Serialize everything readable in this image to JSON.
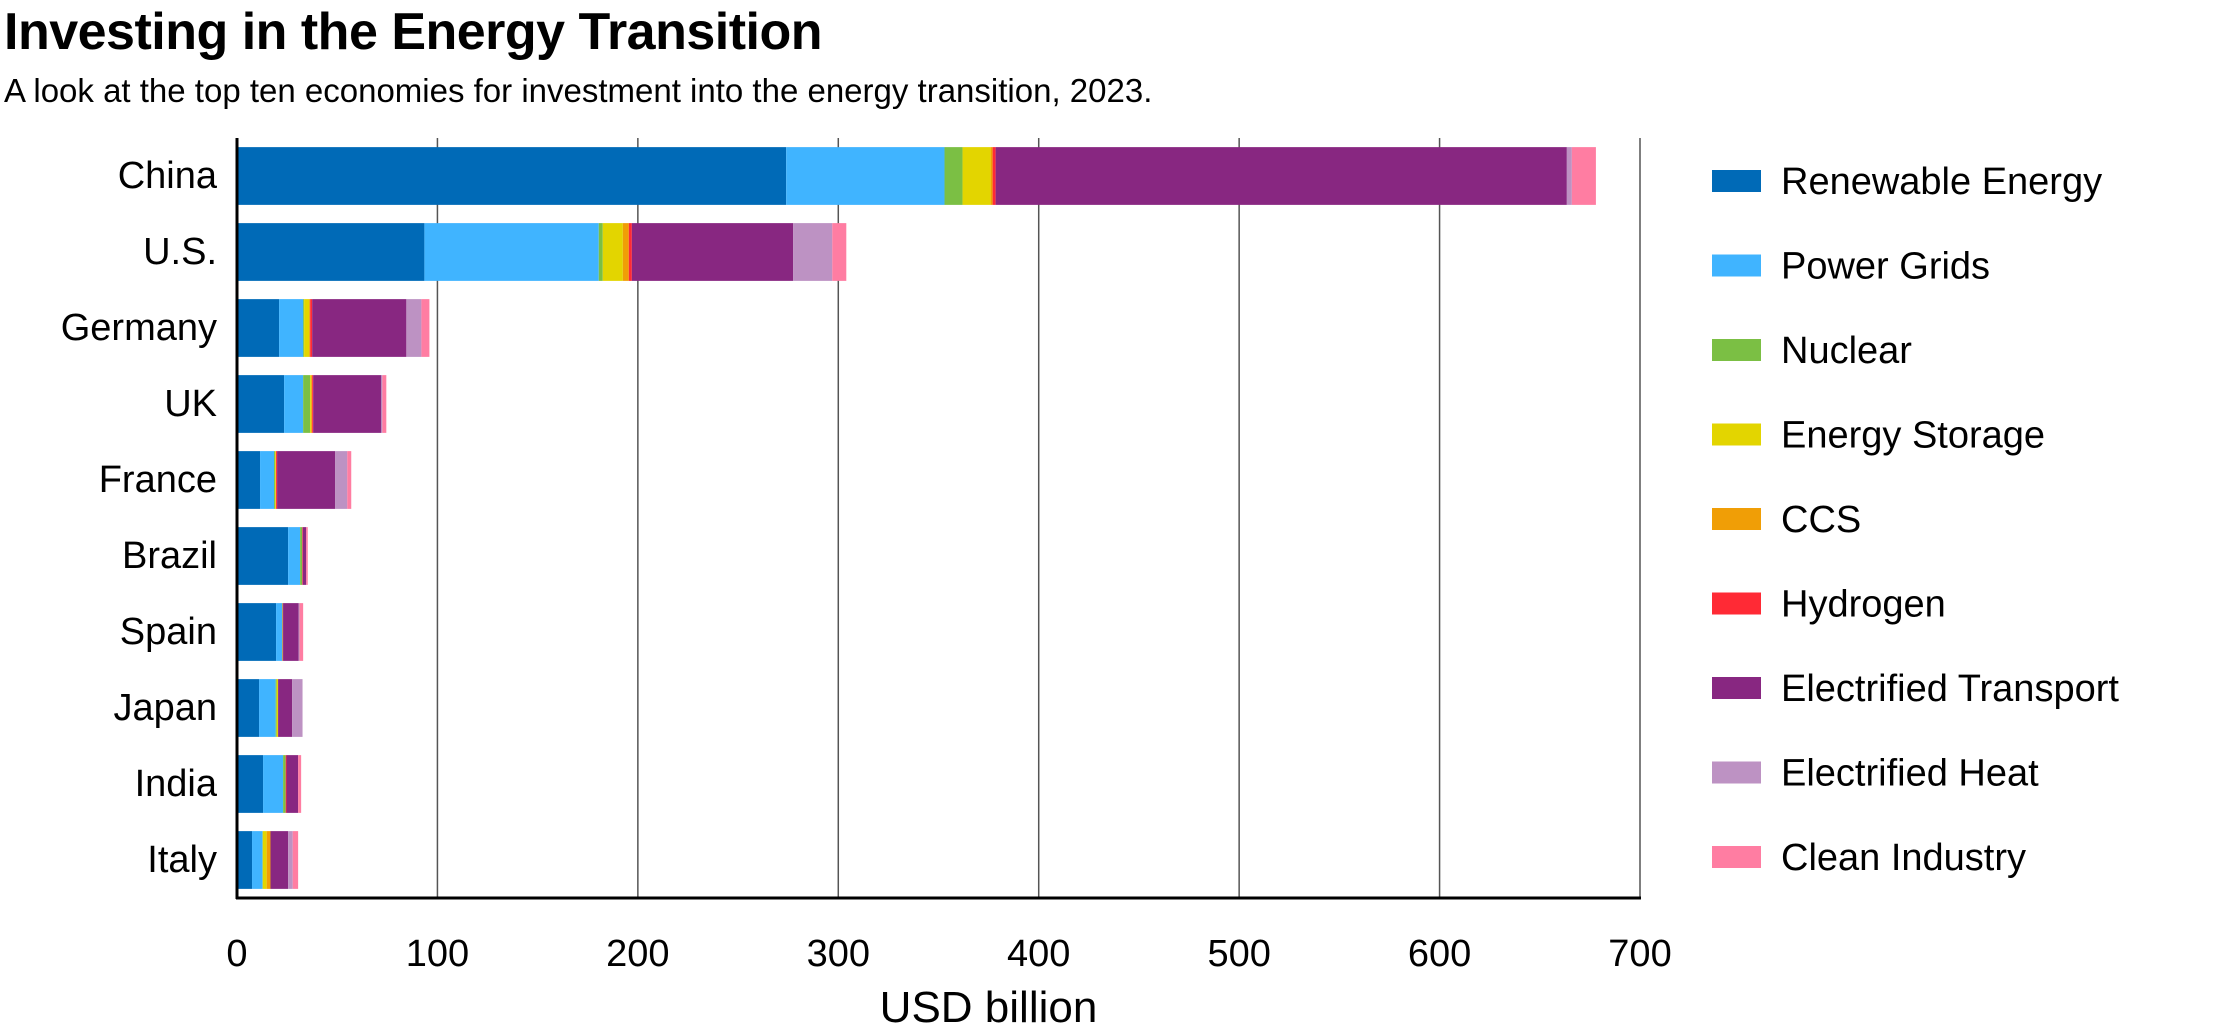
{
  "title": "Investing in the Energy Transition",
  "subtitle": "A look at the top ten economies for investment into the energy transition, 2023.",
  "chart_data": {
    "type": "bar",
    "orientation": "horizontal",
    "stacked": true,
    "title": "Investing in the Energy Transition",
    "subtitle": "A look at the top ten economies for investment into the energy transition, 2023.",
    "xlabel": "USD billion",
    "ylabel": "",
    "xlim": [
      0,
      700
    ],
    "xticks": [
      0,
      100,
      200,
      300,
      400,
      500,
      600,
      700
    ],
    "grid": "vertical",
    "legend_position": "right",
    "categories": [
      "China",
      "U.S.",
      "Germany",
      "UK",
      "France",
      "Brazil",
      "Spain",
      "Japan",
      "India",
      "Italy"
    ],
    "series": [
      {
        "name": "Renewable Energy",
        "color": "#006ab7",
        "values": [
          274,
          93.5,
          21,
          23.5,
          11.5,
          25.5,
          19.5,
          11,
          13,
          7.5
        ]
      },
      {
        "name": "Power Grids",
        "color": "#40b4ff",
        "values": [
          79,
          87,
          12,
          9.5,
          7,
          6,
          3,
          8.3,
          10,
          5.3
        ]
      },
      {
        "name": "Nuclear",
        "color": "#7bbf44",
        "values": [
          9,
          2,
          0.5,
          3.5,
          0.5,
          1,
          0.3,
          0.5,
          1.3,
          0
        ]
      },
      {
        "name": "Energy Storage",
        "color": "#e3d500",
        "values": [
          14,
          10,
          2.5,
          0.5,
          0.3,
          0,
          0,
          0.7,
          0,
          2
        ]
      },
      {
        "name": "CCS",
        "color": "#f09e06",
        "values": [
          1,
          3,
          0.5,
          0.5,
          0.2,
          0,
          0,
          0,
          0,
          1.9
        ]
      },
      {
        "name": "Hydrogen",
        "color": "#ff2a35",
        "values": [
          1.5,
          1.5,
          1,
          0.5,
          0.5,
          0.3,
          0.2,
          0,
          0.4,
          0
        ]
      },
      {
        "name": "Electrified Transport",
        "color": "#882781",
        "values": [
          285,
          80.5,
          47,
          34,
          29,
          1.7,
          7.7,
          7,
          5.8,
          8.8
        ]
      },
      {
        "name": "Electrified Heat",
        "color": "#bd92c3",
        "values": [
          2.5,
          19.5,
          7.5,
          0.5,
          6,
          0,
          0.5,
          5.2,
          0,
          2.3
        ]
      },
      {
        "name": "Clean Industry",
        "color": "#ff7da2",
        "values": [
          12,
          7,
          4,
          2,
          2,
          0.8,
          1.8,
          0,
          1.5,
          2.7
        ]
      }
    ]
  }
}
